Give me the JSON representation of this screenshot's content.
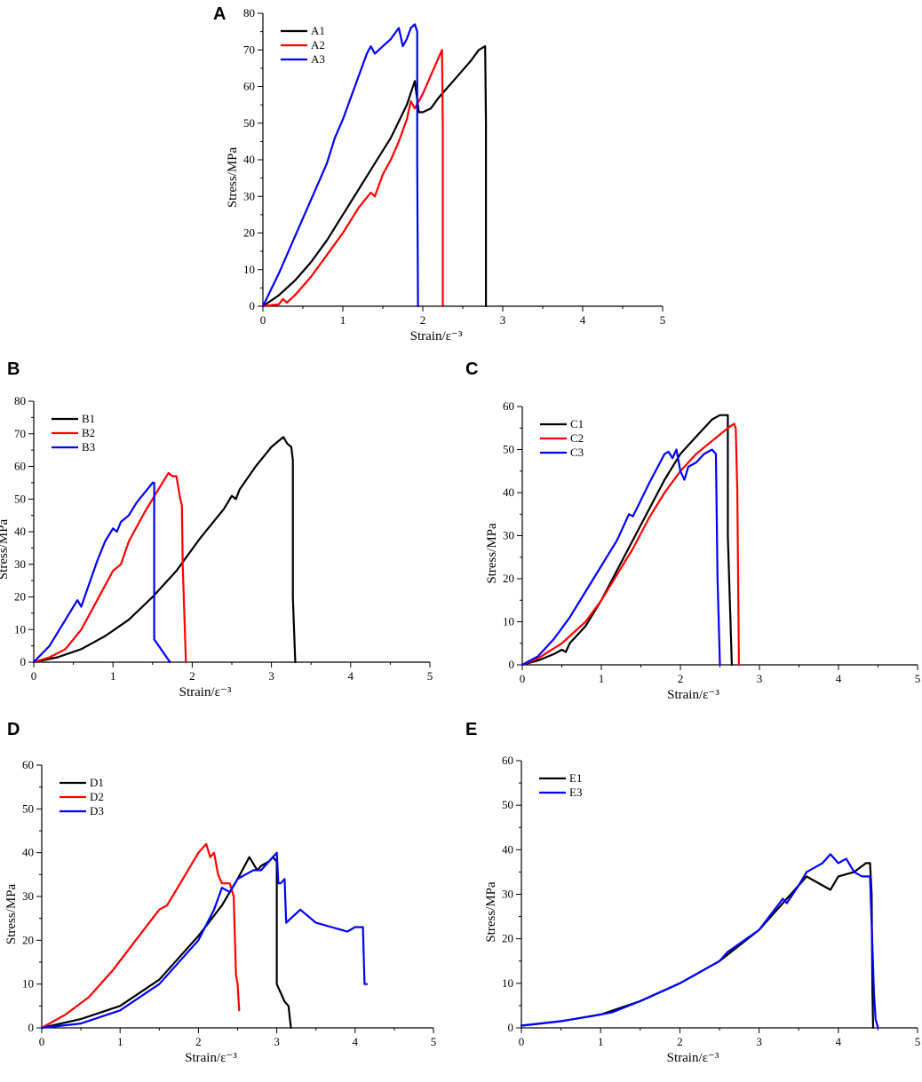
{
  "chart_data": [
    {
      "id": "A",
      "letter": "A",
      "type": "line",
      "xlabel": "Strain/ε⁻³",
      "ylabel": "Stress/MPa",
      "xlim": [
        0,
        5
      ],
      "ylim": [
        0,
        80
      ],
      "xticks": [
        "0",
        "1",
        "2",
        "3",
        "4",
        "5"
      ],
      "yticks": [
        "0",
        "10",
        "20",
        "30",
        "40",
        "50",
        "60",
        "70",
        "80"
      ],
      "xtick_values": [
        0,
        1,
        2,
        3,
        4,
        5
      ],
      "ytick_values": [
        0,
        10,
        20,
        30,
        40,
        50,
        60,
        70,
        80
      ],
      "series": [
        {
          "name": "A1",
          "color": "#000000",
          "x": [
            0,
            0.2,
            0.4,
            0.6,
            0.8,
            1.0,
            1.2,
            1.4,
            1.6,
            1.8,
            1.9,
            1.95,
            2.0,
            2.1,
            2.2,
            2.4,
            2.6,
            2.7,
            2.78,
            2.79,
            2.79
          ],
          "y": [
            0,
            3,
            7,
            12,
            18,
            25,
            32,
            39,
            46,
            55,
            61.5,
            53,
            53,
            54,
            57,
            62,
            67,
            70,
            71,
            50,
            0
          ]
        },
        {
          "name": "A2",
          "color": "#ff0000",
          "x": [
            0,
            0.2,
            0.25,
            0.3,
            0.4,
            0.6,
            0.8,
            1.0,
            1.2,
            1.35,
            1.4,
            1.5,
            1.6,
            1.7,
            1.8,
            1.85,
            1.9,
            2.0,
            2.1,
            2.2,
            2.24,
            2.25,
            2.25
          ],
          "y": [
            0,
            0.5,
            2,
            1,
            3,
            8,
            14,
            20,
            27,
            31,
            30,
            36,
            40,
            45,
            51,
            56,
            54,
            58,
            63,
            68,
            70,
            50,
            0
          ]
        },
        {
          "name": "A3",
          "color": "#0000ff",
          "x": [
            0,
            0.2,
            0.4,
            0.6,
            0.8,
            0.9,
            1.0,
            1.1,
            1.2,
            1.3,
            1.35,
            1.4,
            1.5,
            1.6,
            1.7,
            1.75,
            1.8,
            1.85,
            1.9,
            1.93,
            1.93,
            1.94
          ],
          "y": [
            0,
            9,
            19,
            29,
            39,
            46,
            51,
            57,
            63,
            69,
            71,
            69,
            71,
            73,
            76,
            71,
            73,
            76,
            77,
            75,
            40,
            0
          ]
        }
      ]
    },
    {
      "id": "B",
      "letter": "B",
      "type": "line",
      "xlabel": "Strain/ε⁻³",
      "ylabel": "Stress/MPa",
      "xlim": [
        0,
        5
      ],
      "ylim": [
        0,
        80
      ],
      "xticks": [
        "0",
        "1",
        "2",
        "3",
        "4",
        "5"
      ],
      "yticks": [
        "0",
        "10",
        "20",
        "30",
        "40",
        "50",
        "60",
        "70",
        "80"
      ],
      "xtick_values": [
        0,
        1,
        2,
        3,
        4,
        5
      ],
      "ytick_values": [
        0,
        10,
        20,
        30,
        40,
        50,
        60,
        70,
        80
      ],
      "series": [
        {
          "name": "B1",
          "color": "#000000",
          "x": [
            0,
            0.3,
            0.6,
            0.9,
            1.2,
            1.5,
            1.8,
            2.1,
            2.4,
            2.5,
            2.55,
            2.6,
            2.8,
            3.0,
            3.15,
            3.2,
            3.25,
            3.27,
            3.27,
            3.3
          ],
          "y": [
            0,
            1.5,
            4,
            8,
            13,
            20,
            28,
            38,
            47,
            51,
            50,
            53,
            60,
            66,
            69,
            67,
            66,
            62,
            20,
            0
          ]
        },
        {
          "name": "B2",
          "color": "#ff0000",
          "x": [
            0,
            0.2,
            0.4,
            0.6,
            0.8,
            1.0,
            1.1,
            1.2,
            1.4,
            1.6,
            1.7,
            1.75,
            1.8,
            1.85,
            1.87,
            1.88,
            1.92
          ],
          "y": [
            0,
            1.5,
            4,
            10,
            19,
            28,
            30,
            37,
            46,
            54,
            58,
            57,
            57,
            50,
            48,
            30,
            0
          ]
        },
        {
          "name": "B3",
          "color": "#0000ff",
          "x": [
            0,
            0.2,
            0.4,
            0.55,
            0.6,
            0.7,
            0.8,
            0.9,
            1.0,
            1.05,
            1.1,
            1.2,
            1.3,
            1.4,
            1.5,
            1.52,
            1.52,
            1.72
          ],
          "y": [
            0,
            5,
            13,
            19,
            17,
            24,
            31,
            37,
            41,
            40,
            43,
            45,
            49,
            52,
            55,
            55,
            7,
            0
          ]
        }
      ]
    },
    {
      "id": "C",
      "letter": "C",
      "type": "line",
      "xlabel": "Strain/ε⁻³",
      "ylabel": "Stress/MPa",
      "xlim": [
        0,
        5
      ],
      "ylim": [
        0,
        60
      ],
      "xticks": [
        "0",
        "1",
        "2",
        "3",
        "4",
        "5"
      ],
      "yticks": [
        "0",
        "10",
        "20",
        "30",
        "40",
        "50",
        "60"
      ],
      "xtick_values": [
        0,
        1,
        2,
        3,
        4,
        5
      ],
      "ytick_values": [
        0,
        10,
        20,
        30,
        40,
        50,
        60
      ],
      "series": [
        {
          "name": "C1",
          "color": "#000000",
          "x": [
            0,
            0.2,
            0.4,
            0.5,
            0.55,
            0.6,
            0.8,
            1.0,
            1.2,
            1.4,
            1.6,
            1.8,
            2.0,
            2.2,
            2.4,
            2.5,
            2.55,
            2.6,
            2.6,
            2.65
          ],
          "y": [
            0,
            1,
            2.5,
            3.5,
            3,
            5,
            9,
            15,
            22,
            29,
            36,
            43,
            49,
            53,
            57,
            58,
            58,
            58,
            30,
            0
          ]
        },
        {
          "name": "C2",
          "color": "#ff0000",
          "x": [
            0,
            0.2,
            0.5,
            0.8,
            1.0,
            1.2,
            1.4,
            1.6,
            1.8,
            2.0,
            2.2,
            2.4,
            2.6,
            2.68,
            2.7,
            2.72,
            2.74
          ],
          "y": [
            0,
            1.5,
            5,
            10,
            15,
            21,
            27,
            34,
            40,
            45,
            49,
            52,
            55,
            56,
            55,
            40,
            0
          ]
        },
        {
          "name": "C3",
          "color": "#0000ff",
          "x": [
            0,
            0.2,
            0.4,
            0.6,
            0.8,
            1.0,
            1.2,
            1.35,
            1.4,
            1.6,
            1.8,
            1.85,
            1.9,
            1.95,
            2.0,
            2.05,
            2.1,
            2.2,
            2.3,
            2.4,
            2.45,
            2.47,
            2.5
          ],
          "y": [
            0,
            2,
            6,
            11,
            17,
            23,
            29,
            35,
            34.5,
            42,
            49,
            49.5,
            48,
            50,
            45,
            43,
            46,
            47,
            49,
            50,
            49,
            20,
            0
          ]
        }
      ]
    },
    {
      "id": "D",
      "letter": "D",
      "type": "line",
      "xlabel": "Strain/ε⁻³",
      "ylabel": "Stress/MPa",
      "xlim": [
        0,
        5
      ],
      "ylim": [
        0,
        60
      ],
      "xticks": [
        "0",
        "1",
        "2",
        "3",
        "4",
        "5"
      ],
      "yticks": [
        "0",
        "10",
        "20",
        "30",
        "40",
        "50",
        "60"
      ],
      "xtick_values": [
        0,
        1,
        2,
        3,
        4,
        5
      ],
      "ytick_values": [
        0,
        10,
        20,
        30,
        40,
        50,
        60
      ],
      "series": [
        {
          "name": "D1",
          "color": "#000000",
          "x": [
            0,
            0.5,
            1.0,
            1.5,
            2.0,
            2.3,
            2.5,
            2.65,
            2.75,
            2.8,
            2.9,
            2.95,
            3.0,
            3.0,
            3.05,
            3.1,
            3.15,
            3.18
          ],
          "y": [
            0,
            2,
            5,
            11,
            21,
            28,
            34,
            39,
            36,
            37,
            38,
            39,
            38,
            10,
            8,
            6,
            5,
            0
          ]
        },
        {
          "name": "D2",
          "color": "#ff0000",
          "x": [
            0,
            0.3,
            0.6,
            0.9,
            1.2,
            1.5,
            1.6,
            1.8,
            2.0,
            2.1,
            2.15,
            2.2,
            2.25,
            2.3,
            2.4,
            2.45,
            2.48,
            2.5,
            2.52
          ],
          "y": [
            0,
            3,
            7,
            13,
            20,
            27,
            28,
            34,
            40,
            42,
            39,
            40,
            35,
            33,
            33,
            30,
            12,
            10,
            4
          ]
        },
        {
          "name": "D3",
          "color": "#0000ff",
          "x": [
            0,
            0.5,
            1.0,
            1.5,
            2.0,
            2.2,
            2.3,
            2.4,
            2.5,
            2.6,
            2.7,
            2.8,
            2.9,
            2.95,
            3.0,
            3.02,
            3.05,
            3.1,
            3.12,
            3.3,
            3.5,
            3.7,
            3.9,
            4.0,
            4.1,
            4.12,
            4.15
          ],
          "y": [
            0,
            1,
            4,
            10,
            20,
            27,
            32,
            31,
            34,
            35,
            36,
            36,
            38,
            39,
            40,
            33,
            33,
            34,
            24,
            27,
            24,
            23,
            22,
            23,
            23,
            10,
            10
          ]
        }
      ]
    },
    {
      "id": "E",
      "letter": "E",
      "type": "line",
      "xlabel": "Strain/ε⁻³",
      "ylabel": "Stress/MPa",
      "xlim": [
        0,
        5
      ],
      "ylim": [
        0,
        60
      ],
      "xticks": [
        "0",
        "1",
        "2",
        "3",
        "4",
        "5"
      ],
      "yticks": [
        "0",
        "10",
        "20",
        "30",
        "40",
        "50",
        "60"
      ],
      "xtick_values": [
        0,
        1,
        2,
        3,
        4,
        5
      ],
      "ytick_values": [
        0,
        10,
        20,
        30,
        40,
        50,
        60
      ],
      "series": [
        {
          "name": "E1",
          "color": "#000000",
          "x": [
            0,
            0.5,
            1.0,
            1.5,
            2.0,
            2.5,
            3.0,
            3.3,
            3.5,
            3.6,
            3.7,
            3.8,
            3.9,
            4.0,
            4.2,
            4.35,
            4.4,
            4.42,
            4.43,
            4.44
          ],
          "y": [
            0.5,
            1.5,
            3,
            6,
            10,
            15,
            22,
            28,
            32,
            34,
            33,
            32,
            31,
            34,
            35,
            37,
            37,
            30,
            8,
            0
          ]
        },
        {
          "name": "E3",
          "color": "#0000ff",
          "x": [
            0,
            0.5,
            1.0,
            1.15,
            1.5,
            2.0,
            2.5,
            2.6,
            3.0,
            3.3,
            3.35,
            3.5,
            3.6,
            3.7,
            3.8,
            3.9,
            4.0,
            4.1,
            4.2,
            4.3,
            4.4,
            4.45,
            4.47,
            4.5
          ],
          "y": [
            0.5,
            1.5,
            3,
            3.5,
            6,
            10,
            15,
            17,
            22,
            29,
            28,
            32,
            35,
            36,
            37,
            39,
            37,
            38,
            35,
            34,
            34,
            8,
            2,
            0
          ]
        }
      ]
    }
  ]
}
